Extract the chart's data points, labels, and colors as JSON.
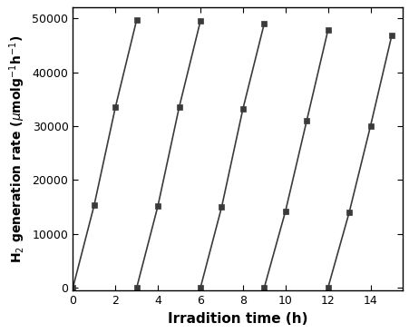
{
  "xlabel": "Irradition time (h)",
  "ylabel": "H₂ generation rate (μmolg⁻¹h⁻¹)",
  "xlim": [
    0,
    15.5
  ],
  "ylim": [
    -500,
    52000
  ],
  "xticks": [
    0,
    2,
    4,
    6,
    8,
    10,
    12,
    14
  ],
  "yticks": [
    0,
    10000,
    20000,
    30000,
    40000,
    50000
  ],
  "ytick_labels": [
    "0",
    "10000",
    "20000",
    "30000",
    "40000",
    "50000"
  ],
  "cycles": [
    {
      "x": [
        0,
        1,
        2,
        3
      ],
      "y": [
        0,
        15300,
        33500,
        49700
      ]
    },
    {
      "x": [
        3,
        4,
        5,
        6
      ],
      "y": [
        0,
        15200,
        33500,
        49500
      ]
    },
    {
      "x": [
        6,
        7,
        8,
        9
      ],
      "y": [
        0,
        15000,
        33200,
        49000
      ]
    },
    {
      "x": [
        9,
        10,
        11,
        12
      ],
      "y": [
        0,
        14200,
        31000,
        47800
      ]
    },
    {
      "x": [
        12,
        13,
        14,
        15
      ],
      "y": [
        0,
        14000,
        30000,
        46800
      ]
    }
  ],
  "line_color": "#3a3a3a",
  "marker": "s",
  "marker_size": 5,
  "marker_color": "#3a3a3a",
  "linewidth": 1.2,
  "xlabel_fontsize": 11,
  "ylabel_fontsize": 10,
  "tick_fontsize": 9,
  "xlabel_fontweight": "bold",
  "ylabel_fontweight": "bold"
}
